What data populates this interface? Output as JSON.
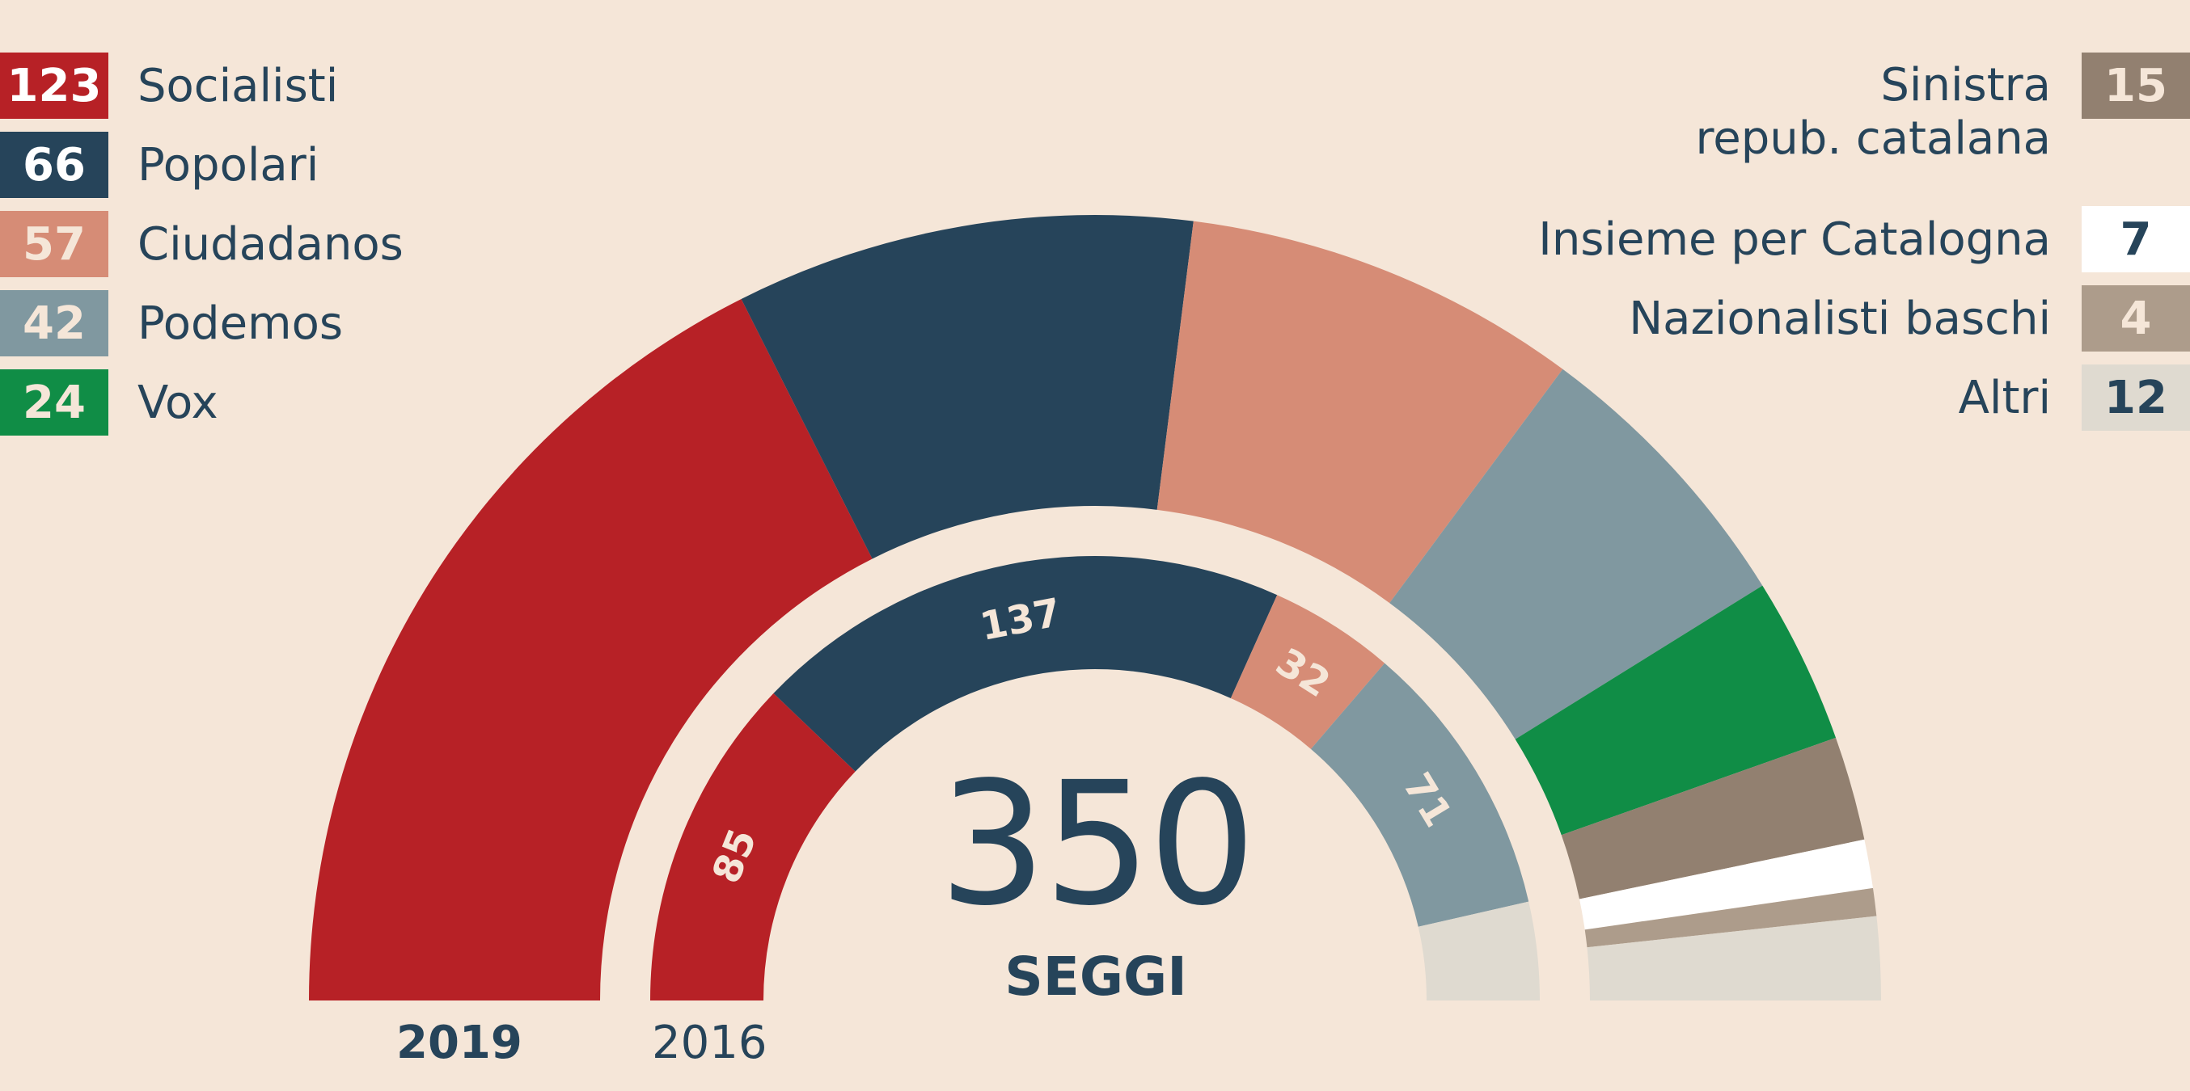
{
  "chart_data": {
    "type": "semicircle",
    "total": {
      "value": "350",
      "label": "SEGGI"
    },
    "rings": [
      {
        "year": "2019",
        "series": [
          {
            "name": "Socialisti",
            "value": 123,
            "color": "#b72126"
          },
          {
            "name": "Popolari",
            "value": 66,
            "color": "#26445a"
          },
          {
            "name": "Ciudadanos",
            "value": 57,
            "color": "#d68c76"
          },
          {
            "name": "Podemos",
            "value": 42,
            "color": "#8098a0"
          },
          {
            "name": "Vox",
            "value": 24,
            "color": "#108d46"
          },
          {
            "name": "Sinistra repub. catalana",
            "value": 15,
            "color": "#928070"
          },
          {
            "name": "Insieme per Catalogna",
            "value": 7,
            "color": "#ffffff"
          },
          {
            "name": "Nazionalisti baschi",
            "value": 4,
            "color": "#ad9c8b"
          },
          {
            "name": "Altri",
            "value": 12,
            "color": "#dfdad0"
          }
        ]
      },
      {
        "year": "2016",
        "series": [
          {
            "name": "Socialisti",
            "value": 85,
            "color": "#b72126",
            "label": "85"
          },
          {
            "name": "Popolari",
            "value": 137,
            "color": "#26445a",
            "label": "137"
          },
          {
            "name": "Ciudadanos",
            "value": 32,
            "color": "#d68c76",
            "label": "32"
          },
          {
            "name": "Podemos",
            "value": 71,
            "color": "#8098a0",
            "label": "71"
          },
          {
            "name": "Altri",
            "value": 25,
            "color": "#dfdad0"
          }
        ]
      }
    ]
  },
  "legend_left": [
    {
      "value": "123",
      "name": "Socialisti",
      "color": "#b72126",
      "text": "#ffffff"
    },
    {
      "value": "66",
      "name": "Popolari",
      "color": "#26445a",
      "text": "#ffffff"
    },
    {
      "value": "57",
      "name": "Ciudadanos",
      "color": "#d68c76",
      "text": "#f5e6d8"
    },
    {
      "value": "42",
      "name": "Podemos",
      "color": "#8098a0",
      "text": "#f5e6d8"
    },
    {
      "value": "24",
      "name": "Vox",
      "color": "#108d46",
      "text": "#f5e6d8"
    }
  ],
  "legend_right": [
    {
      "value": "15",
      "name_line1": "Sinistra",
      "name_line2": "repub. catalana",
      "color": "#928070",
      "text": "#f5e6d8"
    },
    {
      "value": "7",
      "name": "Insieme per Catalogna",
      "color": "#ffffff",
      "text": "#26445a"
    },
    {
      "value": "4",
      "name": "Nazionalisti baschi",
      "color": "#ad9c8b",
      "text": "#f5e6d8"
    },
    {
      "value": "12",
      "name": "Altri",
      "color": "#dfdad0",
      "text": "#26445a"
    }
  ]
}
